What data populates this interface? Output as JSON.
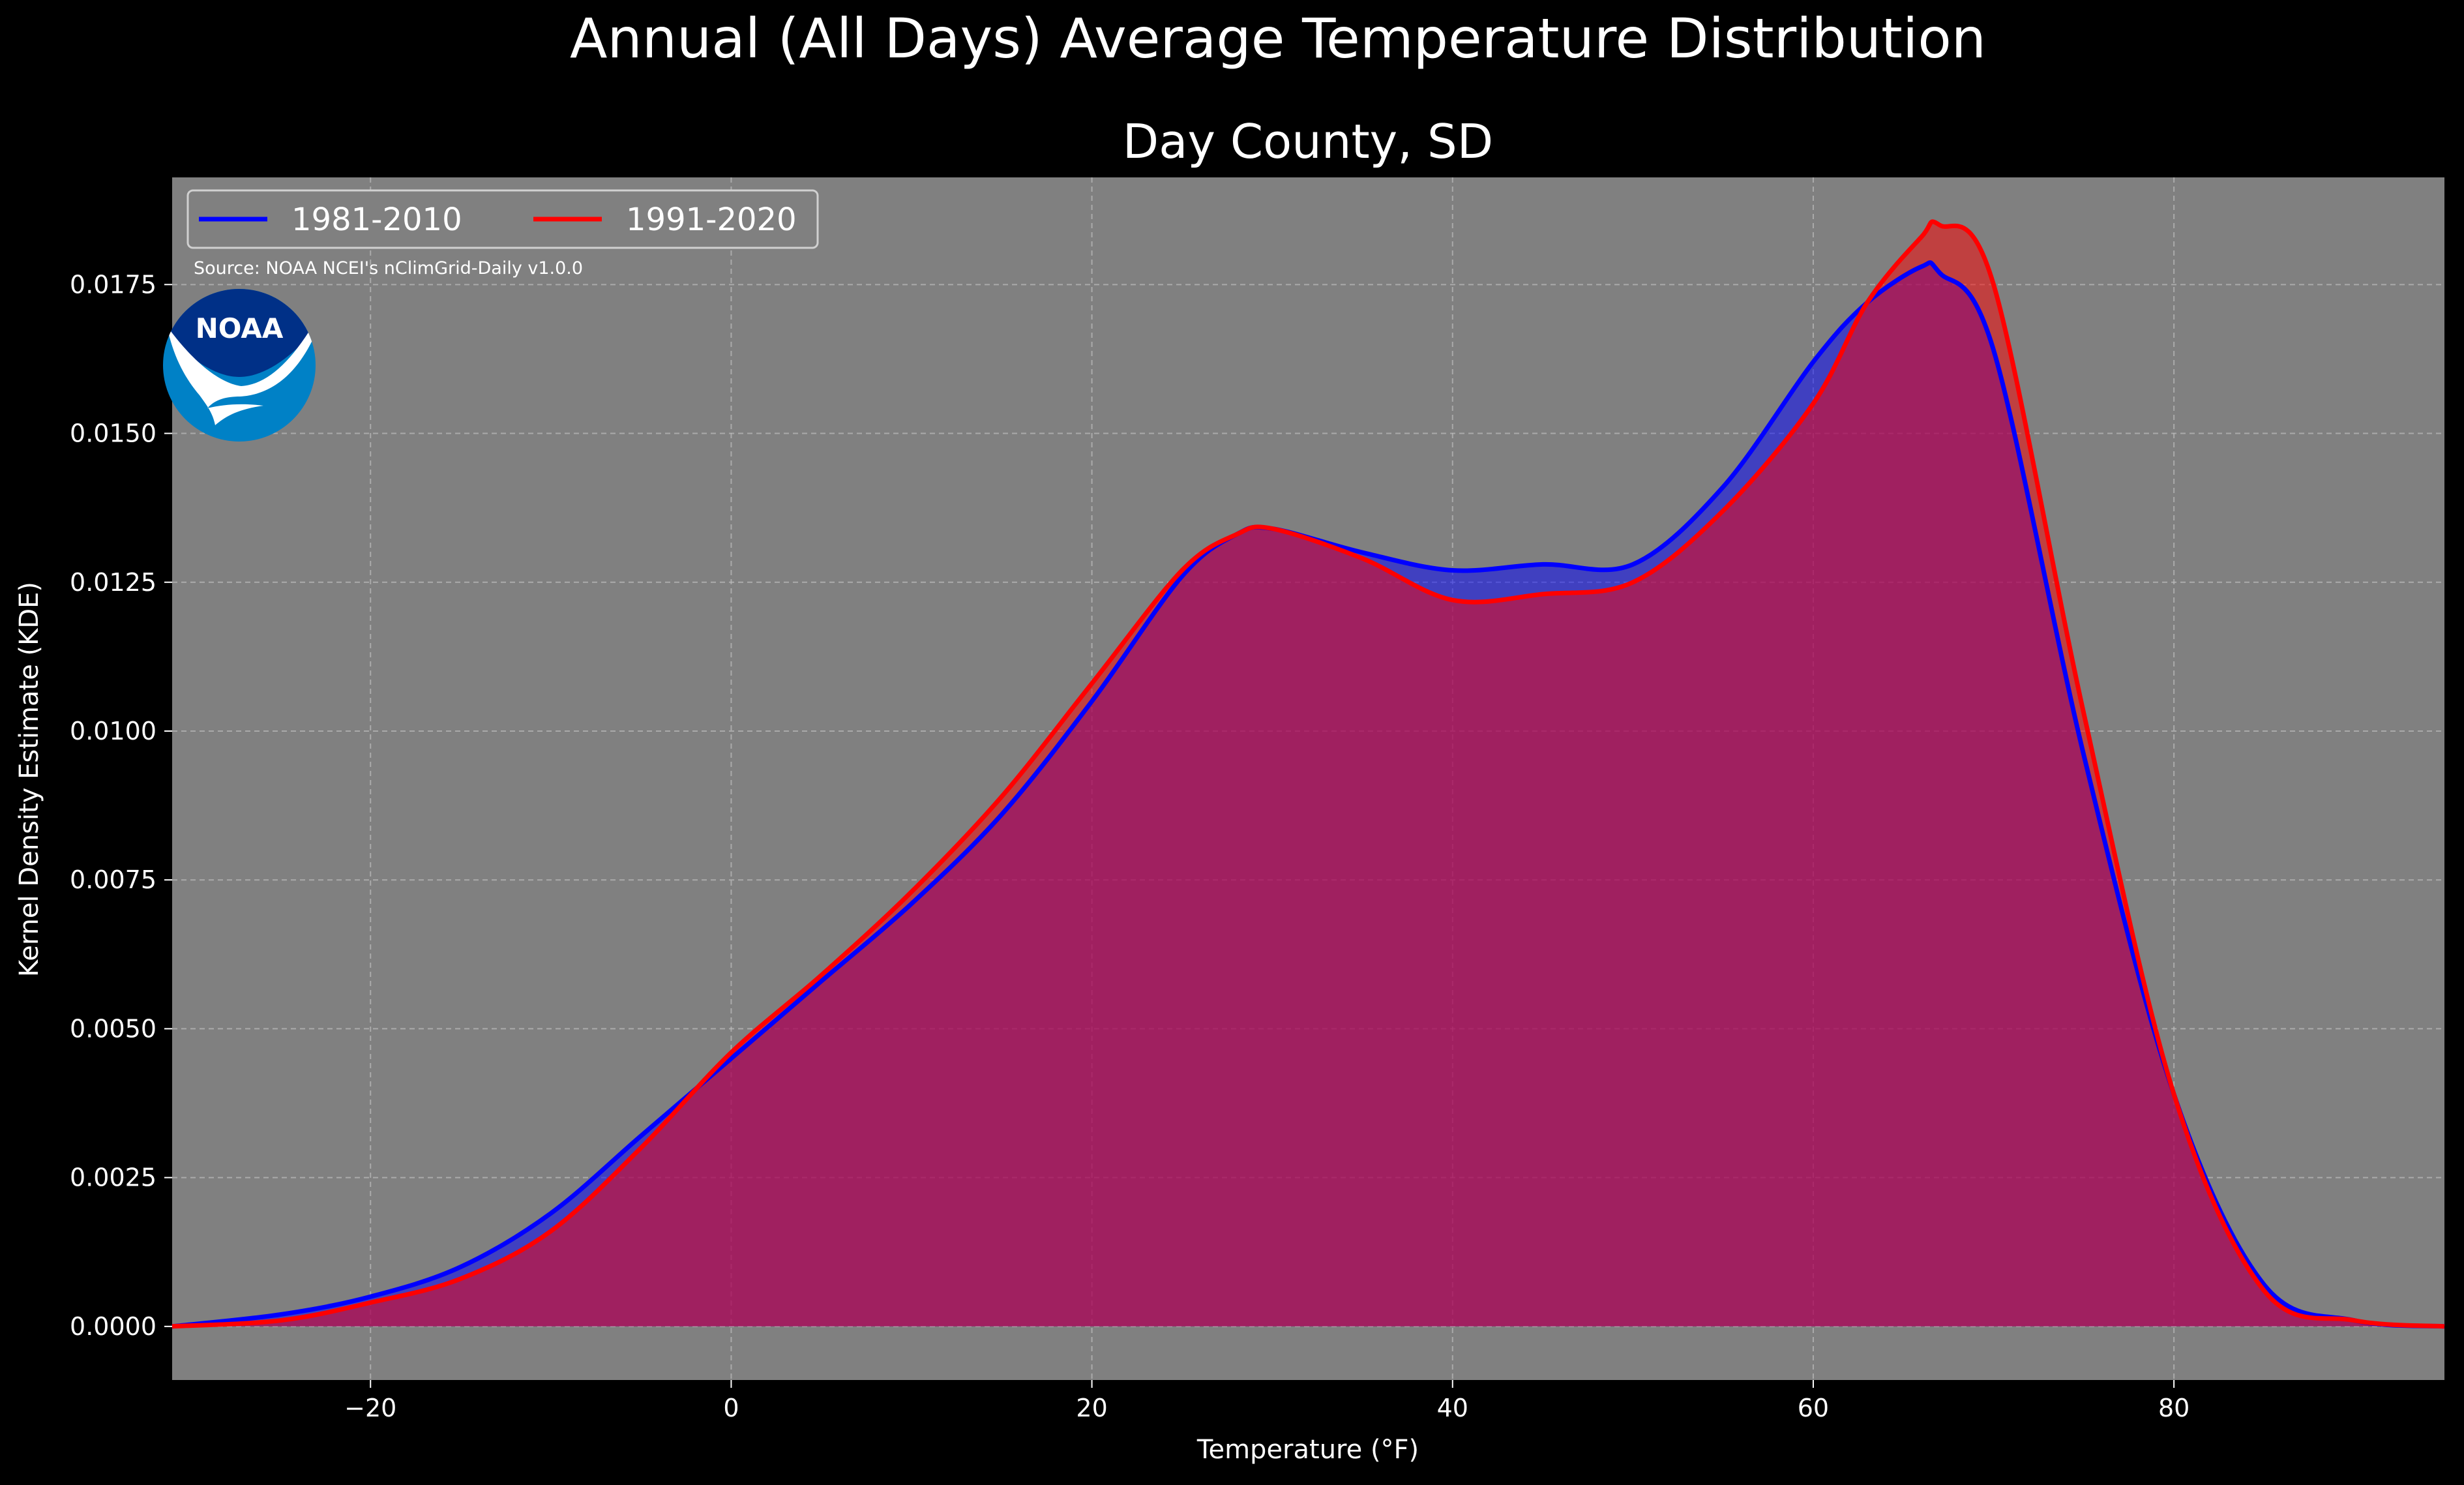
{
  "title": "Annual (All Days) Average Temperature Distribution",
  "source_note": "Source: NOAA NCEI's nClimGrid-Daily v1.0.0",
  "logo": {
    "name": "noaa-logo",
    "text": "NOAA"
  },
  "colors": {
    "background": "#000000",
    "plot_bg": "#808080",
    "series_1": "#0000ff",
    "series_2": "#ff0000",
    "grid": "#bdbdbd"
  },
  "chart_data": {
    "type": "area",
    "title": "Day County, SD",
    "xlabel": "Temperature (°F)",
    "ylabel": "Kernel Density Estimate (KDE)",
    "xlim": [
      -31,
      95
    ],
    "ylim": [
      -0.0009,
      0.0193
    ],
    "x_ticks": [
      -20,
      0,
      20,
      40,
      60,
      80
    ],
    "x_tick_labels": [
      "−20",
      "0",
      "20",
      "40",
      "60",
      "80"
    ],
    "y_ticks": [
      0.0,
      0.0025,
      0.005,
      0.0075,
      0.01,
      0.0125,
      0.015,
      0.0175
    ],
    "y_tick_labels": [
      "0.0000",
      "0.0025",
      "0.0050",
      "0.0075",
      "0.0100",
      "0.0125",
      "0.0150",
      "0.0175"
    ],
    "grid": true,
    "legend_position": "top-left",
    "x": [
      -31,
      -25,
      -20,
      -15,
      -10,
      -5,
      0,
      5,
      10,
      15,
      20,
      25,
      28,
      30,
      35,
      40,
      45,
      50,
      55,
      60,
      63,
      66,
      67,
      70,
      75,
      80,
      85,
      90,
      95
    ],
    "series": [
      {
        "name": "1981-2010",
        "color": "#0000ff",
        "values": [
          0.0,
          0.0002,
          0.0005,
          0.001,
          0.0019,
          0.0032,
          0.0045,
          0.0058,
          0.0071,
          0.0086,
          0.0105,
          0.0126,
          0.0133,
          0.0134,
          0.013,
          0.0127,
          0.0128,
          0.0128,
          0.0141,
          0.0162,
          0.0172,
          0.0178,
          0.0177,
          0.0164,
          0.0096,
          0.0039,
          0.0007,
          0.0001,
          0.0
        ]
      },
      {
        "name": "1991-2020",
        "color": "#ff0000",
        "values": [
          0.0,
          0.0001,
          0.0004,
          0.0008,
          0.0016,
          0.003,
          0.0046,
          0.0059,
          0.0073,
          0.0089,
          0.0108,
          0.0127,
          0.0133,
          0.0134,
          0.0129,
          0.0122,
          0.0123,
          0.0125,
          0.0137,
          0.0155,
          0.0172,
          0.0183,
          0.0185,
          0.0175,
          0.0103,
          0.0039,
          0.0006,
          0.0001,
          0.0
        ]
      }
    ]
  }
}
